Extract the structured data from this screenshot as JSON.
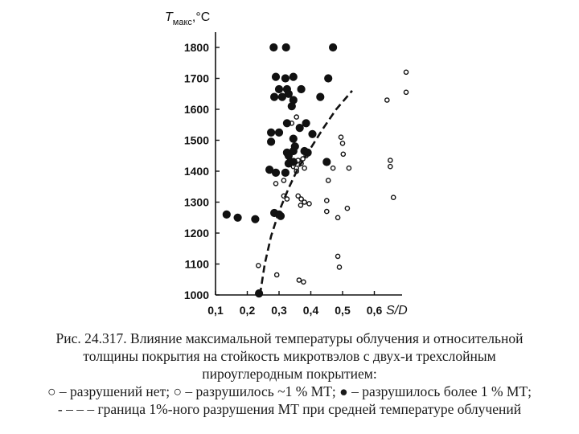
{
  "chart_data": {
    "type": "scatter",
    "y_axis_title": "T",
    "y_axis_title_sub": "макс",
    "y_axis_title_unit": ",°C",
    "x_axis_title": "S/D",
    "x_ticks": [
      "0,1",
      "0,2",
      "0,3",
      "0,4",
      "0,5",
      "0,6"
    ],
    "x_tick_values": [
      0.1,
      0.2,
      0.3,
      0.4,
      0.5,
      0.6
    ],
    "y_ticks": [
      "1000",
      "1100",
      "1200",
      "1300",
      "1400",
      "1500",
      "1600",
      "1700",
      "1800"
    ],
    "y_tick_values": [
      1000,
      1100,
      1200,
      1300,
      1400,
      1500,
      1600,
      1700,
      1800
    ],
    "xlim": [
      0.1,
      0.72
    ],
    "ylim": [
      1000,
      1840
    ],
    "grid": false,
    "series": [
      {
        "marker": "open-circle",
        "points": [
          [
            0.235,
            1095
          ],
          [
            0.293,
            1065
          ],
          [
            0.363,
            1048
          ],
          [
            0.377,
            1042
          ],
          [
            0.315,
            1370
          ],
          [
            0.29,
            1360
          ],
          [
            0.325,
            1310
          ],
          [
            0.315,
            1320
          ],
          [
            0.345,
            1415
          ],
          [
            0.352,
            1430
          ],
          [
            0.355,
            1410
          ],
          [
            0.36,
            1435
          ],
          [
            0.37,
            1425
          ],
          [
            0.375,
            1440
          ],
          [
            0.38,
            1410
          ],
          [
            0.385,
            1450
          ],
          [
            0.34,
            1555
          ],
          [
            0.355,
            1575
          ],
          [
            0.36,
            1320
          ],
          [
            0.368,
            1290
          ],
          [
            0.37,
            1310
          ],
          [
            0.38,
            1300
          ],
          [
            0.395,
            1295
          ],
          [
            0.355,
            1400
          ],
          [
            0.45,
            1305
          ],
          [
            0.45,
            1270
          ],
          [
            0.455,
            1370
          ],
          [
            0.47,
            1410
          ],
          [
            0.485,
            1250
          ],
          [
            0.495,
            1510
          ],
          [
            0.5,
            1490
          ],
          [
            0.502,
            1455
          ],
          [
            0.515,
            1280
          ],
          [
            0.52,
            1410
          ],
          [
            0.485,
            1125
          ],
          [
            0.49,
            1090
          ],
          [
            0.64,
            1630
          ],
          [
            0.65,
            1435
          ],
          [
            0.65,
            1415
          ],
          [
            0.66,
            1315
          ],
          [
            0.7,
            1720
          ],
          [
            0.7,
            1655
          ]
        ]
      },
      {
        "marker": "filled-circle",
        "points": [
          [
            0.283,
            1800
          ],
          [
            0.322,
            1800
          ],
          [
            0.47,
            1800
          ],
          [
            0.29,
            1705
          ],
          [
            0.32,
            1700
          ],
          [
            0.345,
            1705
          ],
          [
            0.455,
            1700
          ],
          [
            0.3,
            1665
          ],
          [
            0.325,
            1665
          ],
          [
            0.37,
            1665
          ],
          [
            0.31,
            1640
          ],
          [
            0.33,
            1650
          ],
          [
            0.345,
            1630
          ],
          [
            0.34,
            1610
          ],
          [
            0.285,
            1640
          ],
          [
            0.43,
            1640
          ],
          [
            0.325,
            1555
          ],
          [
            0.365,
            1540
          ],
          [
            0.385,
            1555
          ],
          [
            0.3,
            1525
          ],
          [
            0.275,
            1525
          ],
          [
            0.405,
            1520
          ],
          [
            0.345,
            1505
          ],
          [
            0.275,
            1495
          ],
          [
            0.325,
            1460
          ],
          [
            0.33,
            1450
          ],
          [
            0.345,
            1465
          ],
          [
            0.35,
            1480
          ],
          [
            0.38,
            1465
          ],
          [
            0.39,
            1460
          ],
          [
            0.33,
            1425
          ],
          [
            0.345,
            1430
          ],
          [
            0.45,
            1430
          ],
          [
            0.29,
            1395
          ],
          [
            0.32,
            1395
          ],
          [
            0.27,
            1405
          ],
          [
            0.285,
            1265
          ],
          [
            0.3,
            1260
          ],
          [
            0.305,
            1255
          ],
          [
            0.135,
            1260
          ],
          [
            0.17,
            1250
          ],
          [
            0.225,
            1245
          ],
          [
            0.237,
            1005
          ]
        ]
      }
    ],
    "boundary_curve": {
      "style": "dashed",
      "points": [
        [
          0.24,
          1000
        ],
        [
          0.255,
          1100
        ],
        [
          0.275,
          1190
        ],
        [
          0.3,
          1270
        ],
        [
          0.33,
          1345
        ],
        [
          0.36,
          1410
        ],
        [
          0.4,
          1475
        ],
        [
          0.44,
          1540
        ],
        [
          0.48,
          1600
        ],
        [
          0.53,
          1660
        ]
      ]
    }
  },
  "caption": {
    "line1": "Рис. 24.317. Влияние максимальной температуры облучения и относительной",
    "line2": "толщины покрытия на стойкость микротвэлов с двух-и трехслойным",
    "line3": "пироуглеродным покрытием:",
    "line4": "○ – разрушений нет; ○ – разрушилось ~1 % МТ; ● – разрушилось более 1 % МТ;",
    "line5": "- – –  – граница 1%-ного разрушения МТ при средней температуре облучений"
  }
}
